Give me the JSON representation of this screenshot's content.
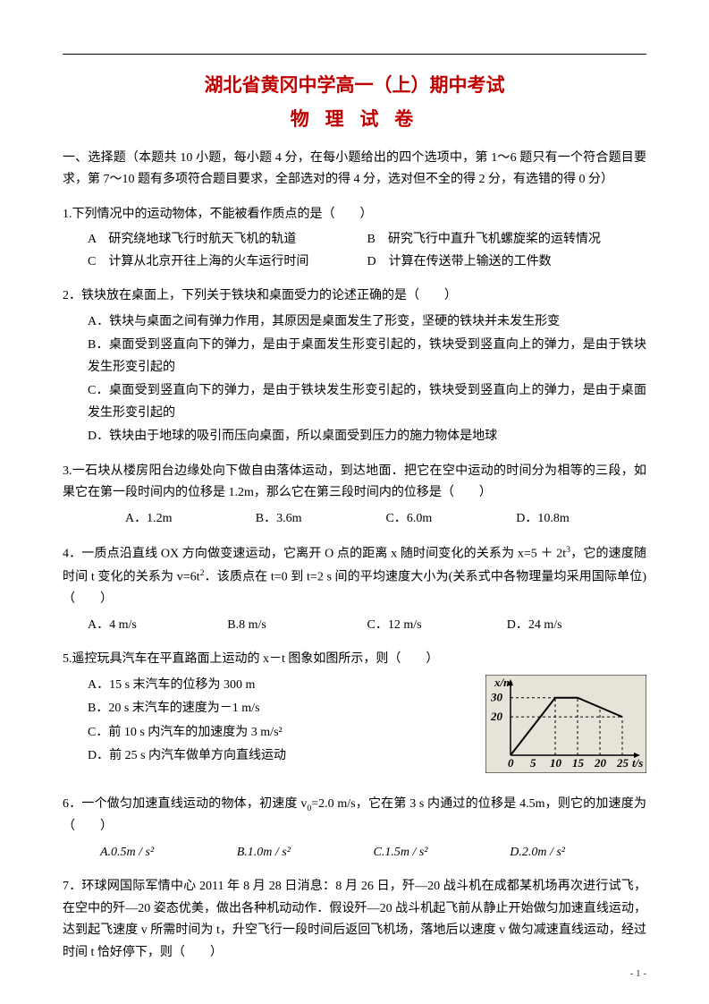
{
  "page": {
    "title": "湖北省黄冈中学高一（上）期中考试",
    "subtitle": "物 理 试 卷",
    "page_number": "- 1 -",
    "colors": {
      "accent": "#c00000",
      "text": "#000000",
      "bg": "#ffffff"
    }
  },
  "section1": {
    "heading": "一、选择题（本题共 10 小题，每小题 4 分，在每小题给出的四个选项中，第 1～6 题只有一个符合题目要求，第 7～10 题有多项符合题目要求，全部选对的得 4 分，选对但不全的得 2 分，有选错的得 0 分）"
  },
  "q1": {
    "stem": "1.下列情况中的运动物体，不能被看作质点的是（　　）",
    "A": "A　研究绕地球飞行时航天飞机的轨道",
    "B": "B　研究飞行中直升飞机螺旋桨的运转情况",
    "C": "C　计算从北京开往上海的火车运行时间",
    "D": "D　计算在传送带上输送的工件数"
  },
  "q2": {
    "stem": "2．铁块放在桌面上，下列关于铁块和桌面受力的论述正确的是（　　）",
    "A": "A．铁块与桌面之间有弹力作用，其原因是桌面发生了形变，坚硬的铁块并未发生形变",
    "B": "B．桌面受到竖直向下的弹力，是由于桌面发生形变引起的，铁块受到竖直向上的弹力，是由于铁块发生形变引起的",
    "C": "C．桌面受到竖直向下的弹力，是由于铁块发生形变引起的，铁块受到竖直向上的弹力，是由于桌面发生形变引起的",
    "D": "D．铁块由于地球的吸引而压向桌面，所以桌面受到压力的施力物体是地球"
  },
  "q3": {
    "stem": "3.一石块从楼房阳台边缘处向下做自由落体运动，到达地面．把它在空中运动的时间分为相等的三段，如果它在第一段时间内的位移是 1.2m，那么它在第三段时间内的位移是（　　）",
    "A": "A．1.2m",
    "B": "B．3.6m",
    "C": "C．6.0m",
    "D": "D．10.8m"
  },
  "q4": {
    "stem_a": "4．一质点沿直线 OX 方向做变速运动，它离开 O 点的距离 x 随时间变化的关系为 x=5 ＋ 2t",
    "stem_b": "，它的速度随时间 t 变化的关系为 v=6t",
    "stem_c": "．该质点在 t=0 到 t=2 s 间的平均速度大小为(关系式中各物理量均采用国际单位)　　（　　）",
    "A": "A．4 m/s",
    "B": "B.8 m/s",
    "C": "C．12 m/s",
    "D": "D．24 m/s"
  },
  "q5": {
    "stem": "5.遥控玩具汽车在平直路面上运动的 x－t 图象如图所示，则（　　）",
    "A": "A．15 s 末汽车的位移为 300 m",
    "B": "B．20 s 末汽车的速度为－1 m/s",
    "C": "C．前 10 s 内汽车的加速度为 3 m/s²",
    "D": "D．前 25 s 内汽车做单方向直线运动",
    "chart": {
      "type": "line",
      "xlabel": "t/s",
      "ylabel": "x/m",
      "xlim": [
        0,
        27
      ],
      "ylim": [
        0,
        35
      ],
      "xticks": [
        0,
        5,
        10,
        15,
        20,
        25
      ],
      "yticks": [
        20,
        30
      ],
      "points": [
        [
          0,
          0
        ],
        [
          10,
          30
        ],
        [
          15,
          30
        ],
        [
          25,
          20
        ]
      ],
      "line_color": "#000000",
      "bg": "#e8e3d8",
      "dash_color": "#000000"
    }
  },
  "q6": {
    "stem_a": "6．一个做匀加速直线运动的物体，初速度 v",
    "stem_b": "=2.0 m/s，它在第 3 s 内通过的位移是 4.5m，则它的加速度为　　（　　）",
    "A": "A.0.5m / s²",
    "B": "B.1.0m / s²",
    "C": "C.1.5m / s²",
    "D": "D.2.0m / s²"
  },
  "q7": {
    "stem": "7．环球网国际军情中心 2011 年 8 月 28 日消息：8 月 26 日，歼—20 战斗机在成都某机场再次进行试飞，在空中的歼—20 姿态优美，做出各种机动动作．假设歼—20 战斗机起飞前从静止开始做匀加速直线运动，达到起飞速度 v 所需时间为 t，升空飞行一段时间后返回飞机场，落地后以速度 v 做匀减速直线运动，经过时间 t 恰好停下，则（　　）"
  }
}
